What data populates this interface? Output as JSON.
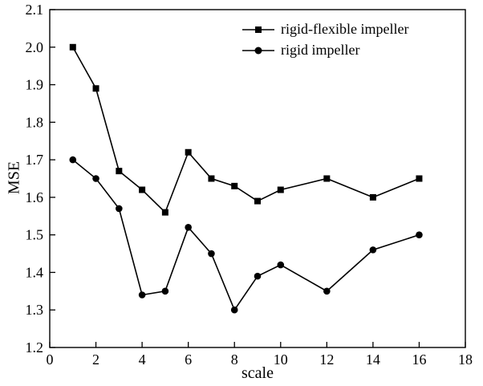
{
  "chart_data": {
    "type": "line",
    "title": "",
    "xlabel": "scale",
    "ylabel": "MSE",
    "xlim": [
      0,
      18
    ],
    "ylim": [
      1.2,
      2.1
    ],
    "xticks": [
      0,
      2,
      4,
      6,
      8,
      10,
      12,
      14,
      16,
      18
    ],
    "yticks": [
      1.2,
      1.3,
      1.4,
      1.5,
      1.6,
      1.7,
      1.8,
      1.9,
      2.0,
      2.1
    ],
    "grid": false,
    "legend_position": "top-center-inside",
    "line_color": "#000000",
    "marker_color": "#000000",
    "background": "#ffffff",
    "x": [
      1,
      2,
      3,
      4,
      5,
      6,
      7,
      8,
      9,
      10,
      12,
      14,
      16
    ],
    "series": [
      {
        "name": "rigid-flexible impeller",
        "marker": "square",
        "values": [
          2.0,
          1.89,
          1.67,
          1.62,
          1.56,
          1.72,
          1.65,
          1.63,
          1.59,
          1.62,
          1.65,
          1.6,
          1.65
        ]
      },
      {
        "name": "rigid impeller",
        "marker": "circle",
        "values": [
          1.7,
          1.65,
          1.57,
          1.34,
          1.35,
          1.52,
          1.45,
          1.3,
          1.39,
          1.42,
          1.35,
          1.46,
          1.5
        ]
      }
    ]
  }
}
